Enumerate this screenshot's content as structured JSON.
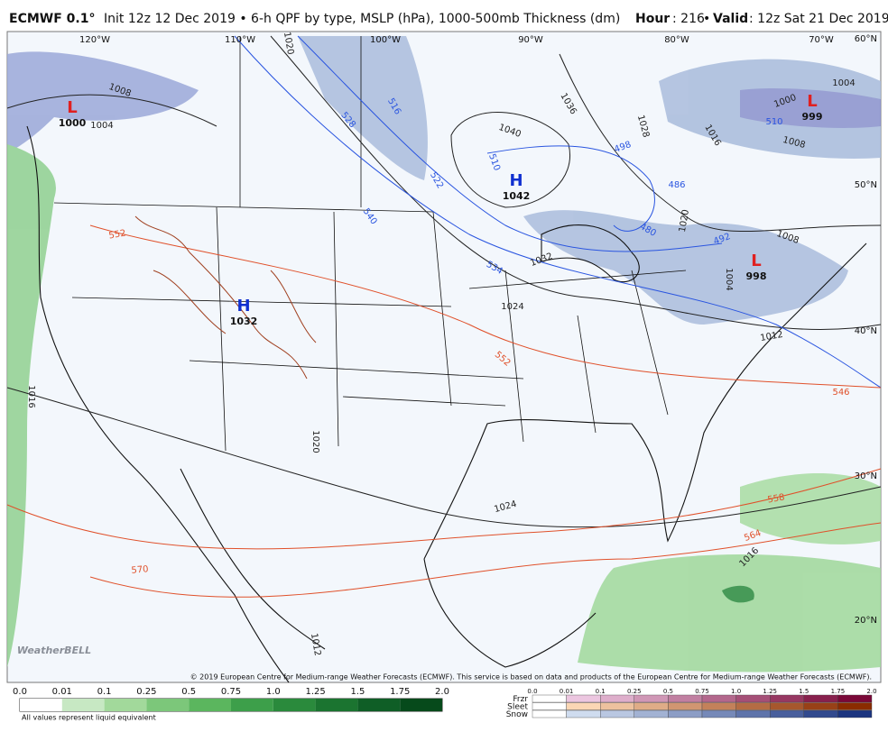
{
  "header": {
    "model": "ECMWF 0.1°",
    "description": "Init 12z 12 Dec 2019 • 6-h QPF by type, MSLP (hPa), 1000-500mb Thickness (dm)",
    "hour_label": "Hour",
    "hour": ": 216",
    "separator": "•",
    "valid_label": "Valid",
    "valid": ": 12z Sat 21 Dec 2019"
  },
  "map": {
    "longitudes": [
      "120°W",
      "110°W",
      "100°W",
      "90°W",
      "80°W",
      "70°W"
    ],
    "latitudes": [
      "60°N",
      "50°N",
      "40°N",
      "30°N",
      "20°N"
    ],
    "pressure_centers": [
      {
        "symbol": "L",
        "value": 1000,
        "color": "#e02020"
      },
      {
        "symbol": "L",
        "value": 999,
        "color": "#e02020"
      },
      {
        "symbol": "H",
        "value": 1042,
        "color": "#1030d0"
      },
      {
        "symbol": "H",
        "value": 1032,
        "color": "#1030d0"
      },
      {
        "symbol": "L",
        "value": 998,
        "color": "#e02020"
      }
    ],
    "isobar_color": "#222222",
    "isobar_labels": [
      1020,
      1036,
      1028,
      1040,
      1032,
      1024,
      1024,
      1012,
      1016,
      1016,
      1012,
      1008,
      1004,
      1000,
      1008,
      1004,
      1008,
      1020,
      1020,
      1004,
      1016
    ],
    "thickness_cold_color": "#2a55e0",
    "thickness_cold_labels": [
      528,
      516,
      522,
      510,
      540,
      498,
      486,
      480,
      534,
      492,
      510
    ],
    "thickness_warm_color": "#e0502a",
    "thickness_warm_labels": [
      552,
      546,
      558,
      564,
      570,
      552
    ],
    "watermark": "WeatherBELL",
    "copyright": "© 2019 European Centre for Medium-range Weather Forecasts (ECMWF). This service is based on data and products of the European Centre for Medium-range Weather Forecasts (ECMWF)."
  },
  "legend": {
    "rain_labels": [
      "0.0",
      "0.01",
      "0.1",
      "0.25",
      "0.5",
      "0.75",
      "1.0",
      "1.25",
      "1.5",
      "1.75",
      "2.0"
    ],
    "rain_colors": [
      "#ffffff",
      "#c7e8c3",
      "#a2d99b",
      "#7cc77a",
      "#5bb65e",
      "#3d9f4a",
      "#2a8a3c",
      "#1b7430",
      "#0f5e26",
      "#064a1b"
    ],
    "rain_note": "All values represent liquid equivalent",
    "mixed_labels": [
      "0.0",
      "0.01",
      "0.1",
      "0.25",
      "0.5",
      "0.75",
      "1.0",
      "1.25",
      "1.5",
      "1.75",
      "2.0"
    ],
    "mixed_rows": [
      {
        "name": "Frzr",
        "colors": [
          "#ecc6e0",
          "#7a0838"
        ]
      },
      {
        "name": "Sleet",
        "colors": [
          "#fbd6b4",
          "#8a2c00"
        ]
      },
      {
        "name": "Snow",
        "colors": [
          "#cfdcef",
          "#1c3580"
        ]
      }
    ]
  }
}
